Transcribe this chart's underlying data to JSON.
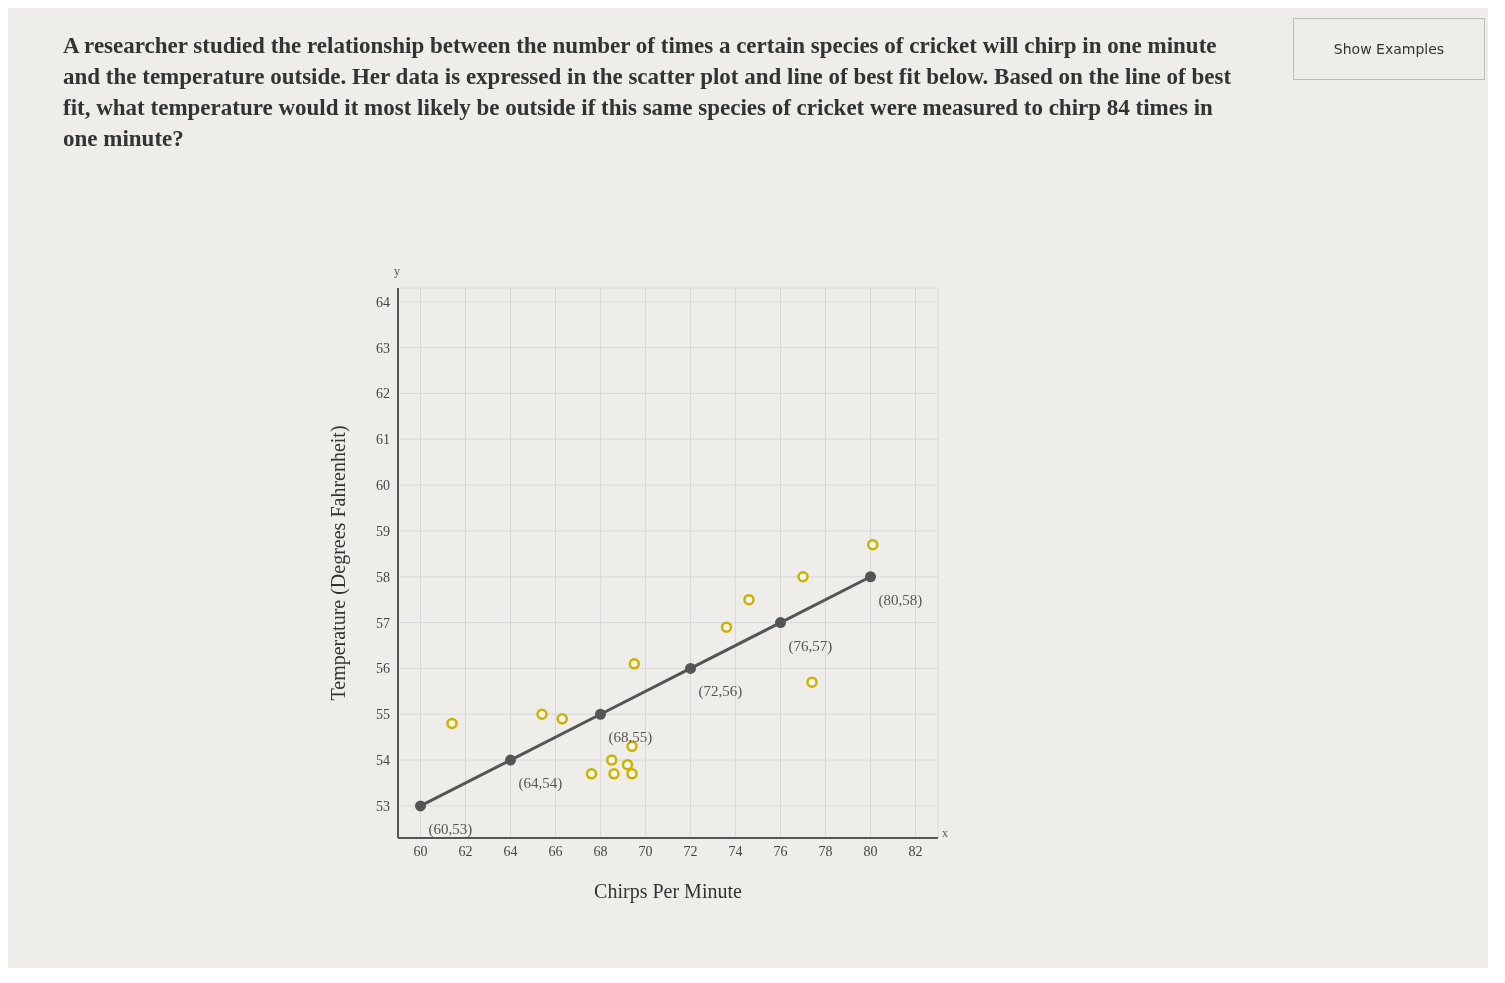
{
  "chart_data": {
    "type": "scatter",
    "title": "A researcher studied the relationship between the number of times a certain species of cricket will chirp in one minute and the temperature outside. Her data is expressed in the scatter plot and line of best fit below. Based on the line of best fit, what temperature would it most likely be outside if this same species of cricket were measured to chirp 84 times in one minute?",
    "xlabel": "Chirps Per Minute",
    "ylabel": "Temperature (Degrees Fahrenheit)",
    "series": [
      {
        "color": "#c9b300",
        "marker": "circle",
        "x": [
          61.4,
          65.4,
          66.3,
          67.6,
          68.5,
          68.6,
          69.2,
          69.4,
          69.4,
          69.5,
          73.6,
          74.6,
          77.0,
          77.4,
          80.1
        ],
        "values": [
          54.8,
          55.0,
          54.9,
          53.7,
          54.0,
          53.7,
          53.9,
          54.3,
          53.7,
          56.1,
          56.9,
          57.5,
          58.0,
          55.7,
          58.7
        ]
      },
      {
        "type": "line",
        "color": "#555555",
        "marker": "circle",
        "line_style": "solid",
        "x": [
          60,
          64,
          68,
          72,
          76,
          80
        ],
        "values": [
          53,
          54,
          55,
          56,
          57,
          58
        ]
      }
    ],
    "xlim": [
      59,
      83
    ],
    "xticks": [
      60,
      62,
      64,
      66,
      68,
      70,
      72,
      74,
      76,
      78,
      80,
      82
    ],
    "ylim": [
      52.3,
      64.3
    ],
    "yticks": [
      53,
      54,
      55,
      56,
      57,
      58,
      59,
      60,
      61,
      62,
      63,
      64
    ],
    "grid": true,
    "annotations": [
      "Show Examples",
      "x",
      "y",
      {
        "text": "(60,53)",
        "x": 60,
        "y": 53
      },
      {
        "text": "(64,54)",
        "x": 64,
        "y": 54
      },
      {
        "text": "(68,55)",
        "x": 68,
        "y": 55
      },
      {
        "text": "(72,56)",
        "x": 72,
        "y": 56
      },
      {
        "text": "(76,57)",
        "x": 76,
        "y": 57
      },
      {
        "text": "(80,58)",
        "x": 80,
        "y": 58
      }
    ]
  }
}
